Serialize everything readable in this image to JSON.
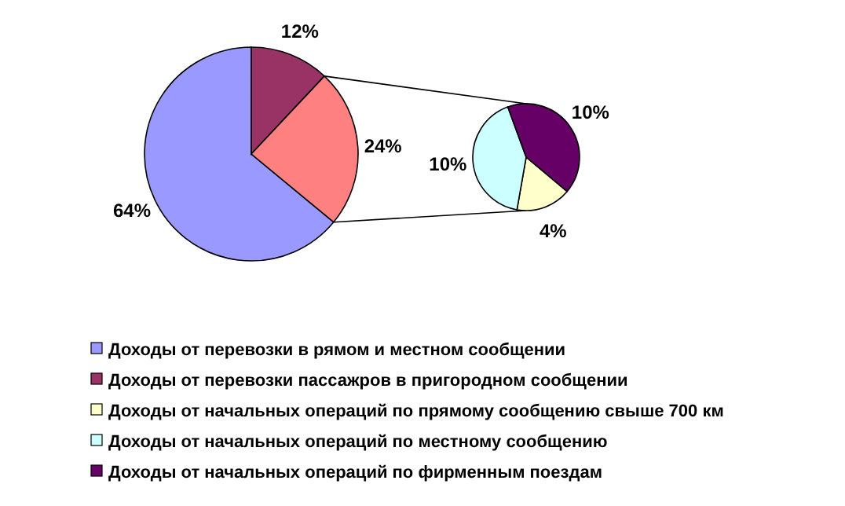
{
  "chart_data": [
    {
      "type": "pie",
      "categories": [
        "Доходы от перевозки в рямом и местном сообщении",
        "Доходы от перевозки пассажров в пригородном сообщении",
        null
      ],
      "values": [
        64,
        12,
        24
      ],
      "value_labels": [
        "64%",
        "12%",
        "24%"
      ],
      "colors": [
        "#9999ff",
        "#993366",
        "#ff8080"
      ],
      "legend": "bottom"
    },
    {
      "type": "pie",
      "categories": [
        "Доходы от начальных операций по прямому сообщению свыше 700 км",
        "Доходы от начальных операций по местному сообщению",
        "Доходы от начальных операций по фирменным поездам"
      ],
      "values": [
        4,
        10,
        10
      ],
      "value_labels": [
        "4%",
        "10%",
        "10%"
      ],
      "colors": [
        "#ffffcc",
        "#ccffff",
        "#660066"
      ],
      "legend": "bottom"
    }
  ]
}
